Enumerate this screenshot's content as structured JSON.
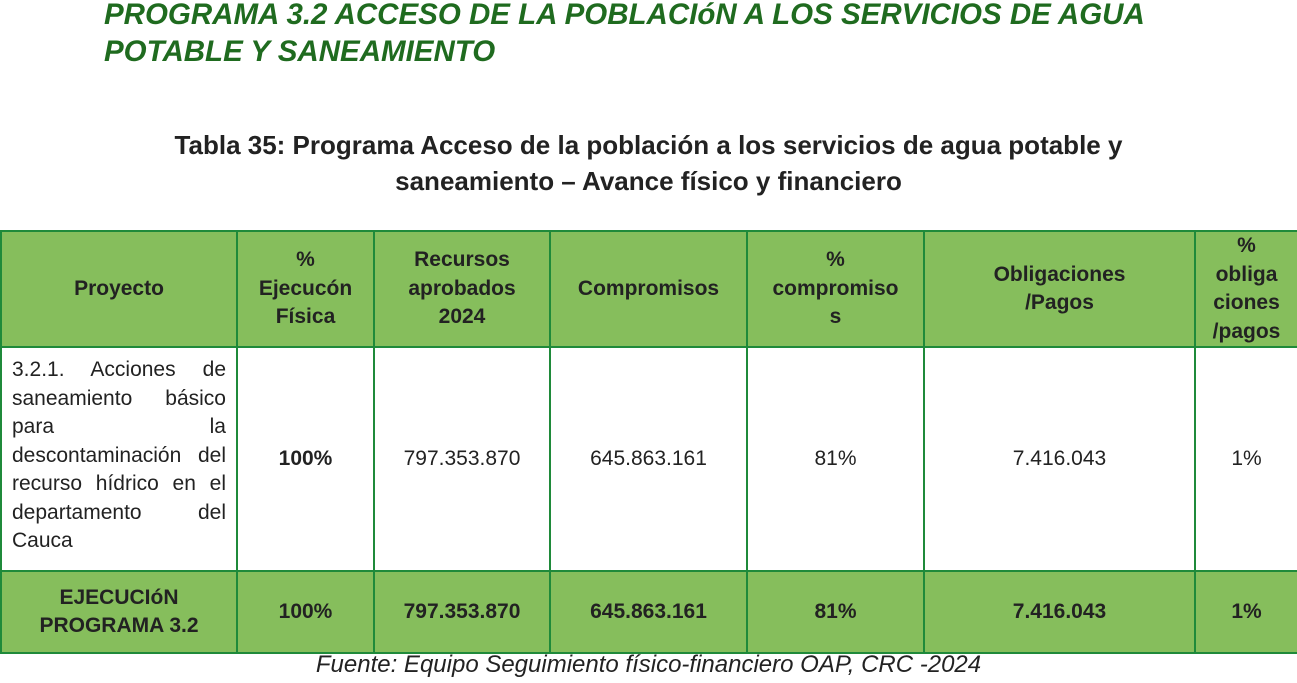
{
  "heading": {
    "line1": "PROGRAMA 3.2 ACCESO DE LA POBLACIóN A LOS  SERVICIOS DE AGUA",
    "line2": "POTABLE Y SANEAMIENTO"
  },
  "caption": {
    "line1": "Tabla 35: Programa Acceso de la población a los servicios de agua potable y",
    "line2": "saneamiento – Avance físico y financiero"
  },
  "table": {
    "headers": {
      "proyecto": "Proyecto",
      "ejecucion_fisica": [
        "%",
        "Ejecucón",
        "Física"
      ],
      "recursos": [
        "Recursos",
        "aprobados",
        "2024"
      ],
      "compromisos": "Compromisos",
      "pct_compromisos": [
        "%",
        "compromiso",
        "s"
      ],
      "obligaciones": [
        "Obligaciones",
        "/Pagos"
      ],
      "pct_obligaciones": [
        "%",
        "obliga",
        "ciones",
        "/pagos"
      ]
    },
    "row": {
      "proyecto": "3.2.1. Acciones de saneamiento básico para la descontaminación del recurso hídrico en el departamento del Cauca",
      "ejecucion_fisica": "100%",
      "recursos": "797.353.870",
      "compromisos": "645.863.161",
      "pct_compromisos": "81%",
      "obligaciones": "7.416.043",
      "pct_obligaciones": "1%"
    },
    "total": {
      "label": [
        "EJECUCIóN",
        "PROGRAMA 3.2"
      ],
      "ejecucion_fisica": "100%",
      "recursos": "797.353.870",
      "compromisos": "645.863.161",
      "pct_compromisos": "81%",
      "obligaciones": "7.416.043",
      "pct_obligaciones": "1%"
    }
  },
  "source": "Fuente: Equipo Seguimiento físico-financiero OAP, CRC -2024",
  "colors": {
    "heading": "#1f6b1f",
    "header_fill": "#86be5c",
    "border": "#1f8a3a"
  }
}
